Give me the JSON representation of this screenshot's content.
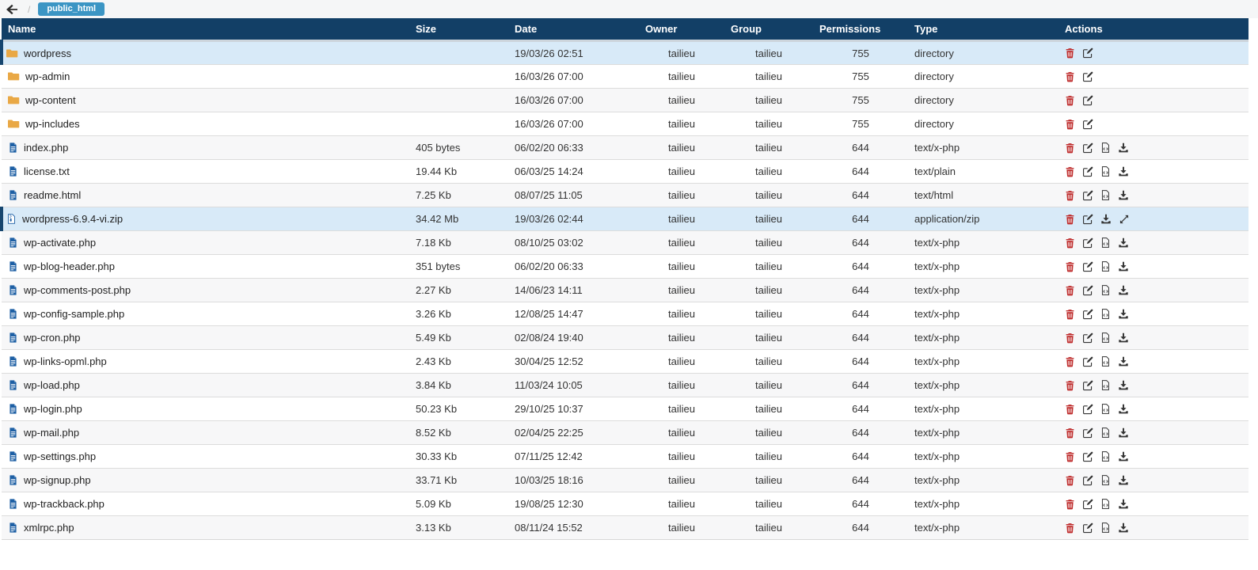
{
  "toolbar": {
    "back_icon": "arrow-left",
    "separator": "/",
    "breadcrumb": "public_html"
  },
  "colors": {
    "header_bg": "#123F66",
    "row_highlight": "#D8EAF8",
    "highlight_border": "#17466F",
    "breadcrumb_badge_bg": "#3B95C4",
    "folder_icon": "#E9A845",
    "file_icon": "#1D5FA4",
    "delete_icon": "#BE2B2B",
    "action_icon": "#333333"
  },
  "table": {
    "headers": [
      "Name",
      "Size",
      "Date",
      "Owner",
      "Group",
      "Permissions",
      "Type",
      "Actions"
    ],
    "rows": [
      {
        "name": "wordpress",
        "icon": "folder",
        "size": "",
        "date": "19/03/26 02:51",
        "owner": "tailieu",
        "group": "tailieu",
        "permissions": "755",
        "type": "directory",
        "actions": [
          "delete",
          "edit"
        ],
        "highlighted": true
      },
      {
        "name": "wp-admin",
        "icon": "folder",
        "size": "",
        "date": "16/03/26 07:00",
        "owner": "tailieu",
        "group": "tailieu",
        "permissions": "755",
        "type": "directory",
        "actions": [
          "delete",
          "edit"
        ],
        "highlighted": false
      },
      {
        "name": "wp-content",
        "icon": "folder",
        "size": "",
        "date": "16/03/26 07:00",
        "owner": "tailieu",
        "group": "tailieu",
        "permissions": "755",
        "type": "directory",
        "actions": [
          "delete",
          "edit"
        ],
        "highlighted": false
      },
      {
        "name": "wp-includes",
        "icon": "folder",
        "size": "",
        "date": "16/03/26 07:00",
        "owner": "tailieu",
        "group": "tailieu",
        "permissions": "755",
        "type": "directory",
        "actions": [
          "delete",
          "edit"
        ],
        "highlighted": false
      },
      {
        "name": "index.php",
        "icon": "file",
        "size": "405 bytes",
        "date": "06/02/20 06:33",
        "owner": "tailieu",
        "group": "tailieu",
        "permissions": "644",
        "type": "text/x-php",
        "actions": [
          "delete",
          "edit",
          "view-code",
          "download"
        ],
        "highlighted": false
      },
      {
        "name": "license.txt",
        "icon": "file",
        "size": "19.44 Kb",
        "date": "06/03/25 14:24",
        "owner": "tailieu",
        "group": "tailieu",
        "permissions": "644",
        "type": "text/plain",
        "actions": [
          "delete",
          "edit",
          "view-code",
          "download"
        ],
        "highlighted": false
      },
      {
        "name": "readme.html",
        "icon": "file",
        "size": "7.25 Kb",
        "date": "08/07/25 11:05",
        "owner": "tailieu",
        "group": "tailieu",
        "permissions": "644",
        "type": "text/html",
        "actions": [
          "delete",
          "edit",
          "view-code",
          "download"
        ],
        "highlighted": false
      },
      {
        "name": "wordpress-6.9.4-vi.zip",
        "icon": "archive",
        "size": "34.42 Mb",
        "date": "19/03/26 02:44",
        "owner": "tailieu",
        "group": "tailieu",
        "permissions": "644",
        "type": "application/zip",
        "actions": [
          "delete",
          "edit",
          "download",
          "extract"
        ],
        "highlighted": true
      },
      {
        "name": "wp-activate.php",
        "icon": "file",
        "size": "7.18 Kb",
        "date": "08/10/25 03:02",
        "owner": "tailieu",
        "group": "tailieu",
        "permissions": "644",
        "type": "text/x-php",
        "actions": [
          "delete",
          "edit",
          "view-code",
          "download"
        ],
        "highlighted": false
      },
      {
        "name": "wp-blog-header.php",
        "icon": "file",
        "size": "351 bytes",
        "date": "06/02/20 06:33",
        "owner": "tailieu",
        "group": "tailieu",
        "permissions": "644",
        "type": "text/x-php",
        "actions": [
          "delete",
          "edit",
          "view-code",
          "download"
        ],
        "highlighted": false
      },
      {
        "name": "wp-comments-post.php",
        "icon": "file",
        "size": "2.27 Kb",
        "date": "14/06/23 14:11",
        "owner": "tailieu",
        "group": "tailieu",
        "permissions": "644",
        "type": "text/x-php",
        "actions": [
          "delete",
          "edit",
          "view-code",
          "download"
        ],
        "highlighted": false
      },
      {
        "name": "wp-config-sample.php",
        "icon": "file",
        "size": "3.26 Kb",
        "date": "12/08/25 14:47",
        "owner": "tailieu",
        "group": "tailieu",
        "permissions": "644",
        "type": "text/x-php",
        "actions": [
          "delete",
          "edit",
          "view-code",
          "download"
        ],
        "highlighted": false
      },
      {
        "name": "wp-cron.php",
        "icon": "file",
        "size": "5.49 Kb",
        "date": "02/08/24 19:40",
        "owner": "tailieu",
        "group": "tailieu",
        "permissions": "644",
        "type": "text/x-php",
        "actions": [
          "delete",
          "edit",
          "view-code",
          "download"
        ],
        "highlighted": false
      },
      {
        "name": "wp-links-opml.php",
        "icon": "file",
        "size": "2.43 Kb",
        "date": "30/04/25 12:52",
        "owner": "tailieu",
        "group": "tailieu",
        "permissions": "644",
        "type": "text/x-php",
        "actions": [
          "delete",
          "edit",
          "view-code",
          "download"
        ],
        "highlighted": false
      },
      {
        "name": "wp-load.php",
        "icon": "file",
        "size": "3.84 Kb",
        "date": "11/03/24 10:05",
        "owner": "tailieu",
        "group": "tailieu",
        "permissions": "644",
        "type": "text/x-php",
        "actions": [
          "delete",
          "edit",
          "view-code",
          "download"
        ],
        "highlighted": false
      },
      {
        "name": "wp-login.php",
        "icon": "file",
        "size": "50.23 Kb",
        "date": "29/10/25 10:37",
        "owner": "tailieu",
        "group": "tailieu",
        "permissions": "644",
        "type": "text/x-php",
        "actions": [
          "delete",
          "edit",
          "view-code",
          "download"
        ],
        "highlighted": false
      },
      {
        "name": "wp-mail.php",
        "icon": "file",
        "size": "8.52 Kb",
        "date": "02/04/25 22:25",
        "owner": "tailieu",
        "group": "tailieu",
        "permissions": "644",
        "type": "text/x-php",
        "actions": [
          "delete",
          "edit",
          "view-code",
          "download"
        ],
        "highlighted": false
      },
      {
        "name": "wp-settings.php",
        "icon": "file",
        "size": "30.33 Kb",
        "date": "07/11/25 12:42",
        "owner": "tailieu",
        "group": "tailieu",
        "permissions": "644",
        "type": "text/x-php",
        "actions": [
          "delete",
          "edit",
          "view-code",
          "download"
        ],
        "highlighted": false
      },
      {
        "name": "wp-signup.php",
        "icon": "file",
        "size": "33.71 Kb",
        "date": "10/03/25 18:16",
        "owner": "tailieu",
        "group": "tailieu",
        "permissions": "644",
        "type": "text/x-php",
        "actions": [
          "delete",
          "edit",
          "view-code",
          "download"
        ],
        "highlighted": false
      },
      {
        "name": "wp-trackback.php",
        "icon": "file",
        "size": "5.09 Kb",
        "date": "19/08/25 12:30",
        "owner": "tailieu",
        "group": "tailieu",
        "permissions": "644",
        "type": "text/x-php",
        "actions": [
          "delete",
          "edit",
          "view-code",
          "download"
        ],
        "highlighted": false
      },
      {
        "name": "xmlrpc.php",
        "icon": "file",
        "size": "3.13 Kb",
        "date": "08/11/24 15:52",
        "owner": "tailieu",
        "group": "tailieu",
        "permissions": "644",
        "type": "text/x-php",
        "actions": [
          "delete",
          "edit",
          "view-code",
          "download"
        ],
        "highlighted": false
      }
    ]
  }
}
